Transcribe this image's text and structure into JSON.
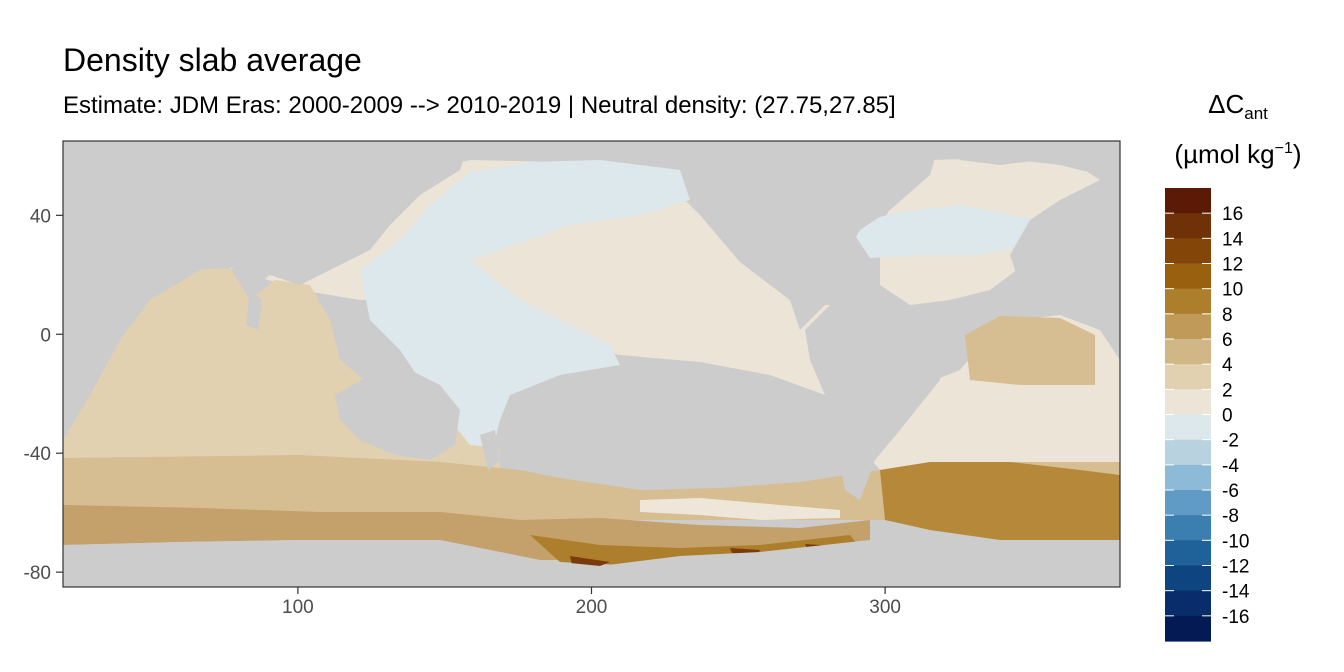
{
  "chart_data": {
    "type": "heatmap",
    "title": "Density slab average",
    "subtitle": "Estimate: JDM Eras: 2000-2009 --> 2010-2019 | Neutral density: (27.75,27.85]",
    "xlabel": "",
    "ylabel": "",
    "xlim": [
      20,
      380
    ],
    "ylim": [
      -85,
      65
    ],
    "x_ticks": [
      100,
      200,
      300
    ],
    "y_ticks": [
      40,
      0,
      -40,
      -80
    ],
    "grid": false,
    "land_color": "#cccccc",
    "legend": {
      "position": "right",
      "title_main": "ΔC",
      "title_sub": "ant",
      "unit_open": "(µmol kg",
      "unit_sup": "−1",
      "unit_close": ")",
      "labels": [
        "16",
        "14",
        "12",
        "10",
        "8",
        "6",
        "4",
        "2",
        "0",
        "-2",
        "-4",
        "-6",
        "-8",
        "-10",
        "-12",
        "-14",
        "-16"
      ],
      "colors": [
        "#5b1a06",
        "#6f3208",
        "#844608",
        "#99600f",
        "#ad7f2c",
        "#bf9a58",
        "#d1b686",
        "#e1d1b1",
        "#ece4d6",
        "#dde8ec",
        "#b8d2e0",
        "#8dbad6",
        "#5f9bc4",
        "#3b7fb0",
        "#1f629a",
        "#0e4580",
        "#082d6a",
        "#031a55"
      ]
    },
    "regions": [
      {
        "name": "southern-ocean-deep",
        "value": 14,
        "color": "#6f3208"
      },
      {
        "name": "antarctic-margin",
        "value": 10,
        "color": "#ad7f2c"
      },
      {
        "name": "south-atlantic-band",
        "value": 9,
        "color": "#b58939"
      },
      {
        "name": "southern-band",
        "value": 5,
        "color": "#d1b686"
      },
      {
        "name": "indian-ocean",
        "value": 3,
        "color": "#e1d1b1"
      },
      {
        "name": "pacific-atlantic-interior",
        "value": 1,
        "color": "#ece4d6"
      },
      {
        "name": "north-pacific-west-pacific",
        "value": -1,
        "color": "#dde8ec"
      }
    ]
  }
}
